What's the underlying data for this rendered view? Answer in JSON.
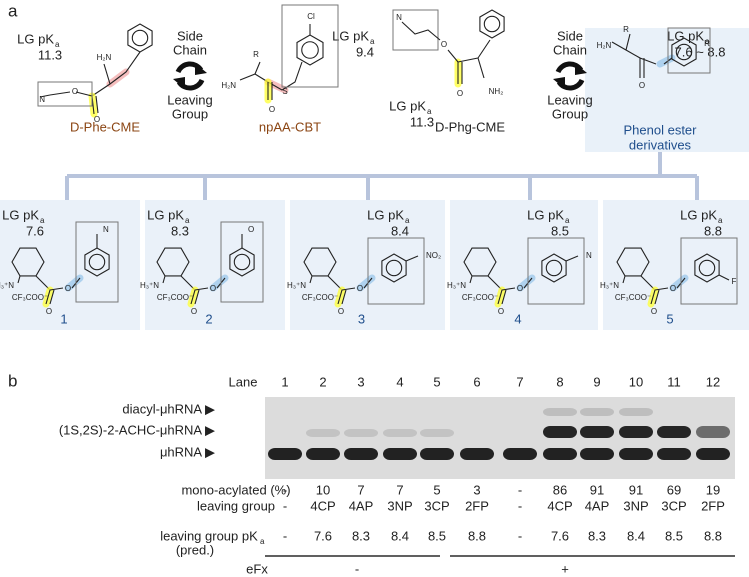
{
  "panel_labels": [
    "a",
    "b"
  ],
  "lg_pka": {
    "main": "LG pK",
    "sub": "a"
  },
  "arrow_labels": {
    "top": [
      "Side",
      "Chain"
    ],
    "bottom": [
      "Leaving",
      "Group"
    ]
  },
  "top_compounds": [
    {
      "name": "D-Phe-CME",
      "pka": 11.3,
      "atoms": [
        "H₂N",
        "O",
        "O",
        "N"
      ]
    },
    {
      "name": "npAA-CBT",
      "pka": 9.4,
      "atoms": [
        "R",
        "H₂N",
        "S",
        "O",
        "Cl"
      ]
    },
    {
      "name": "D-Phg-CME",
      "pka": 11.3,
      "atoms": [
        "N",
        "O",
        "O",
        "NH₂"
      ]
    },
    {
      "name": [
        "Phenol ester",
        "derivatives"
      ],
      "pka": "7.6 ~ 8.8",
      "atoms": [
        "H₂N",
        "R",
        "O",
        "R"
      ]
    }
  ],
  "derivative_atoms": [
    "H₃⁺N",
    "CF₃COO⁻",
    "O",
    "O"
  ],
  "derivatives": [
    {
      "id": 1,
      "pka": 7.6,
      "substituent": "N"
    },
    {
      "id": 2,
      "pka": 8.3,
      "substituent": "O"
    },
    {
      "id": 3,
      "pka": 8.4,
      "substituent": "NO₂"
    },
    {
      "id": 4,
      "pka": 8.5,
      "substituent": "N"
    },
    {
      "id": 5,
      "pka": 8.8,
      "substituent": "F"
    }
  ],
  "gel": {
    "lane_title": "Lane",
    "lanes": [
      1,
      2,
      3,
      4,
      5,
      6,
      7,
      8,
      9,
      10,
      11,
      12
    ],
    "band_labels": [
      "diacyl-μhRNA ▶",
      "(1S,2S)-2-ACHC-μhRNA ▶",
      "μhRNA ▶"
    ],
    "rows": [
      {
        "label": "mono-acylated (%)",
        "values": [
          "-",
          10,
          7,
          7,
          5,
          3,
          "-",
          86,
          91,
          91,
          69,
          19
        ]
      },
      {
        "label": "leaving group",
        "values": [
          "-",
          "4CP",
          "4AP",
          "3NP",
          "3CP",
          "2FP",
          "-",
          "4CP",
          "4AP",
          "3NP",
          "3CP",
          "2FP"
        ]
      },
      {
        "label": [
          "leaving group pK",
          "a",
          "(pred.)"
        ],
        "values": [
          "-",
          7.6,
          8.3,
          8.4,
          8.5,
          8.8,
          "-",
          7.6,
          8.3,
          8.4,
          8.5,
          8.8
        ]
      }
    ],
    "efx": {
      "label": "eFx",
      "groups": [
        "-",
        "+"
      ]
    }
  }
}
